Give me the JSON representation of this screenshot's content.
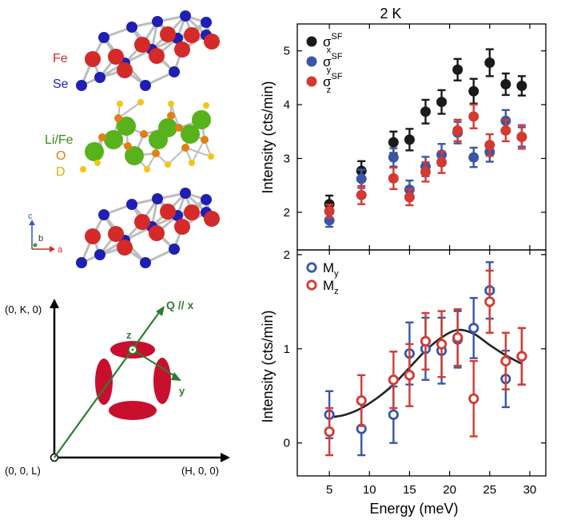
{
  "crystal": {
    "label_fe": "Fe",
    "label_se": "Se",
    "label_life": "Li/Fe",
    "label_o": "O",
    "label_d": "D",
    "axis_c": "c",
    "axis_b": "b",
    "axis_a": "a",
    "colors": {
      "fe": "#d42a2a",
      "se": "#1f1fb4",
      "li": "#58b21c",
      "o": "#e07f16",
      "d": "#f2c615",
      "bond": "#bdbdbd"
    }
  },
  "recip": {
    "k_label": "(0, K, 0)",
    "origin_label": "(0, 0, L)",
    "h_label": "(H, 0, 0)",
    "q_label": "Q // x",
    "z_label": "z",
    "y_label": "y",
    "lobe_color": "#c8102e",
    "arrow_color": "#2e7d32"
  },
  "chart_data": [
    {
      "type": "scatter",
      "title": "2 K",
      "ylabel": "Intensity (cts/min)",
      "xlabel": "",
      "xlim": [
        1,
        32
      ],
      "ylim": [
        1.3,
        5.5
      ],
      "yticks": [
        2,
        3,
        4,
        5
      ],
      "xticks": [
        5,
        10,
        15,
        20,
        25,
        30
      ],
      "show_x_ticklabels": false,
      "grid": false,
      "legend_position": "top-left",
      "series": [
        {
          "name": "σx",
          "name_base": "σ",
          "sup": "SF",
          "sub": "x",
          "color": "#1a1a1a",
          "filled": true,
          "x": [
            5,
            9,
            13,
            15,
            17,
            19,
            21,
            23,
            25,
            27,
            29
          ],
          "y": [
            2.15,
            2.77,
            3.3,
            3.35,
            3.87,
            4.05,
            4.65,
            4.25,
            4.78,
            4.38,
            4.35
          ],
          "err": [
            0.16,
            0.18,
            0.2,
            0.2,
            0.22,
            0.22,
            0.2,
            0.23,
            0.25,
            0.2,
            0.18
          ]
        },
        {
          "name": "σy",
          "name_base": "σ",
          "sup": "SF",
          "sub": "y",
          "color": "#3b56a8",
          "filled": true,
          "x": [
            5,
            9,
            13,
            15,
            17,
            19,
            21,
            23,
            25,
            27,
            29
          ],
          "y": [
            1.85,
            2.62,
            3.02,
            2.42,
            2.85,
            3.07,
            3.48,
            3.02,
            3.12,
            3.7,
            3.4
          ],
          "err": [
            0.12,
            0.17,
            0.17,
            0.17,
            0.18,
            0.2,
            0.2,
            0.18,
            0.18,
            0.2,
            0.18
          ]
        },
        {
          "name": "σz",
          "name_base": "σ",
          "sup": "SF",
          "sub": "z",
          "color": "#d33a32",
          "filled": true,
          "x": [
            5,
            9,
            13,
            15,
            17,
            19,
            21,
            23,
            25,
            27,
            29
          ],
          "y": [
            2.02,
            2.32,
            2.63,
            2.28,
            2.75,
            2.93,
            3.52,
            3.78,
            3.25,
            3.52,
            3.4
          ],
          "err": [
            0.12,
            0.17,
            0.2,
            0.15,
            0.18,
            0.2,
            0.2,
            0.22,
            0.2,
            0.2,
            0.22
          ]
        }
      ]
    },
    {
      "type": "scatter",
      "title": "",
      "ylabel": "Intensity (cts/min)",
      "xlabel": "Energy (meV)",
      "xlim": [
        1,
        32
      ],
      "ylim": [
        -0.35,
        2.05
      ],
      "yticks": [
        0,
        1,
        2
      ],
      "xticks": [
        5,
        10,
        15,
        20,
        25,
        30
      ],
      "show_x_ticklabels": true,
      "grid": false,
      "legend_position": "top-left",
      "series": [
        {
          "name": "My",
          "name_base": "M",
          "sup": "",
          "sub": "y",
          "color": "#3b56a8",
          "filled": false,
          "x": [
            5,
            9,
            13,
            15,
            17,
            19,
            21,
            23,
            25,
            27,
            29
          ],
          "y": [
            0.3,
            0.15,
            0.3,
            0.95,
            1.0,
            0.98,
            1.1,
            1.22,
            1.62,
            0.68,
            0.92
          ],
          "err": [
            0.25,
            0.28,
            0.3,
            0.33,
            0.33,
            0.35,
            0.3,
            0.32,
            0.3,
            0.3,
            0.3
          ]
        },
        {
          "name": "Mz",
          "name_base": "M",
          "sup": "",
          "sub": "z",
          "color": "#d33a32",
          "filled": false,
          "x": [
            5,
            9,
            13,
            15,
            17,
            19,
            21,
            23,
            25,
            27,
            29
          ],
          "y": [
            0.12,
            0.45,
            0.67,
            0.72,
            1.08,
            1.05,
            1.12,
            0.47,
            1.5,
            0.87,
            0.92
          ],
          "err": [
            0.25,
            0.27,
            0.3,
            0.33,
            0.3,
            0.35,
            0.3,
            0.4,
            0.33,
            0.3,
            0.3
          ]
        }
      ],
      "fit": {
        "color": "#222222",
        "x": [
          5,
          7,
          9,
          11,
          13,
          15,
          17,
          19,
          21,
          23,
          25,
          27,
          29
        ],
        "y": [
          0.27,
          0.3,
          0.37,
          0.48,
          0.62,
          0.8,
          0.98,
          1.12,
          1.2,
          1.16,
          1.04,
          0.93,
          0.84
        ]
      }
    }
  ]
}
